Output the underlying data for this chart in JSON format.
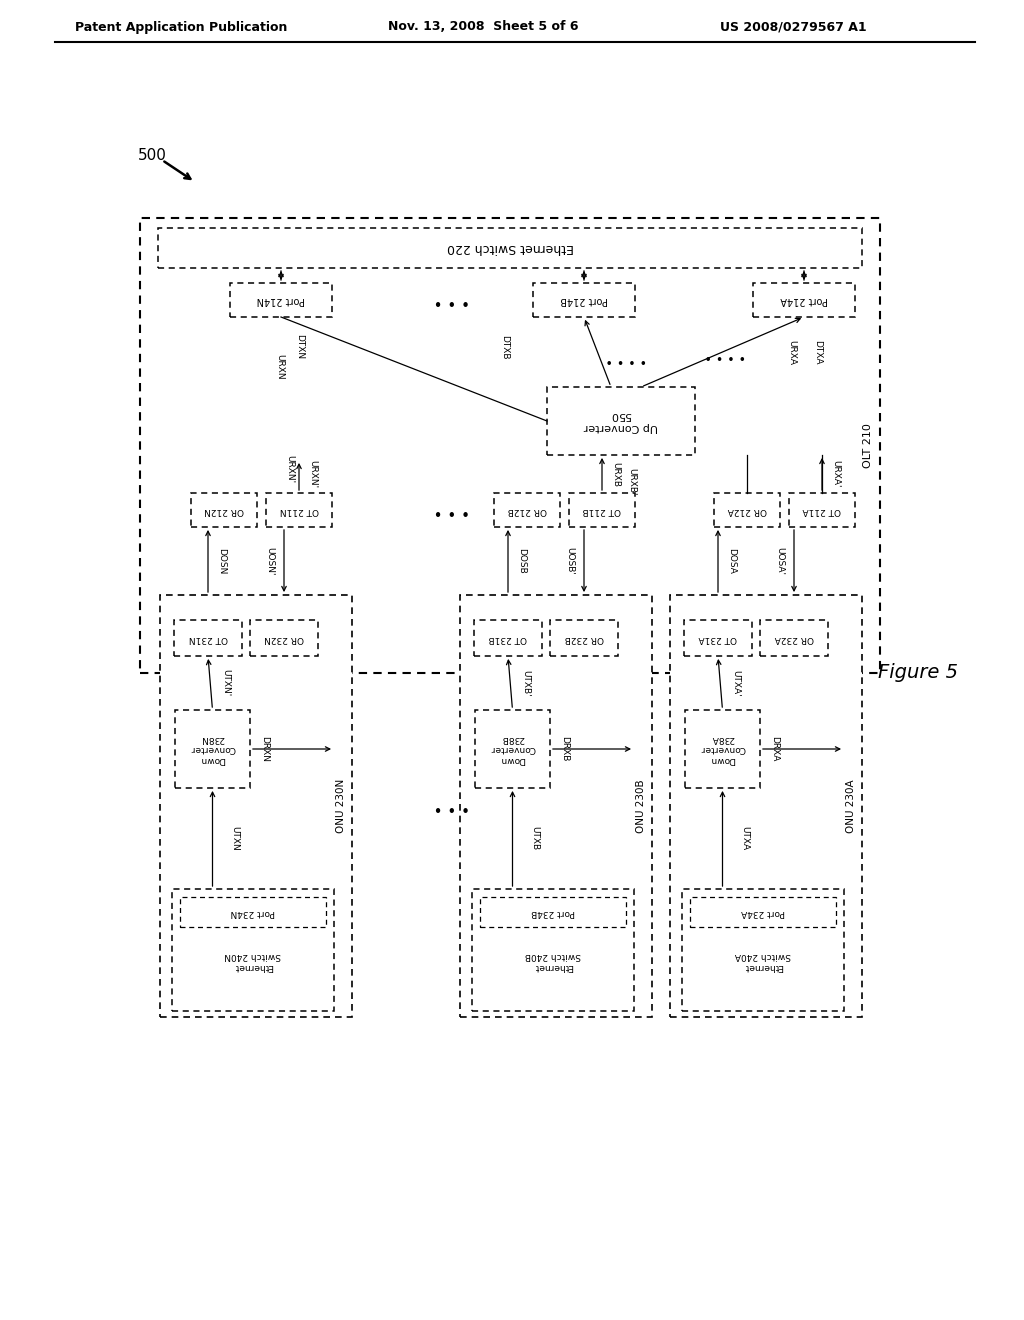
{
  "header_left": "Patent Application Publication",
  "header_center": "Nov. 13, 2008  Sheet 5 of 6",
  "header_right": "US 2008/0279567 A1",
  "figure_label": "Figure 5",
  "sys_label": "500",
  "port214": [
    "Port 214A",
    "Port 214B",
    "Port 214N"
  ],
  "port234": [
    "Port 234A",
    "Port 234B",
    "Port 234N"
  ],
  "eth240": [
    "Ethernet\nSwitch 240A",
    "Ethernet\nSwitch 240B",
    "Ethernet\nSwitch 240N"
  ],
  "down_conv": [
    "Down\nConverter\n238A",
    "Down\nConverter\n238B",
    "Down\nConverter\n238N"
  ],
  "onu": [
    "ONU 230A",
    "ONU 230B",
    "ONU 230N"
  ],
  "onu_ot": [
    "OT 231A",
    "OT 231B",
    "OT 231N"
  ],
  "onu_or": [
    "OR 232A",
    "OR 232B",
    "OR 232N"
  ],
  "olt_label": "OLT 210",
  "eth220": "Ethernet Switch 220",
  "up_conv": "Up Converter\n550",
  "olt_ot": [
    "OT 211A",
    "OT 211B",
    "OT 211N"
  ],
  "olt_or": [
    "OR 212A",
    "OR 212B",
    "OR 212N"
  ],
  "bg_color": "#ffffff"
}
